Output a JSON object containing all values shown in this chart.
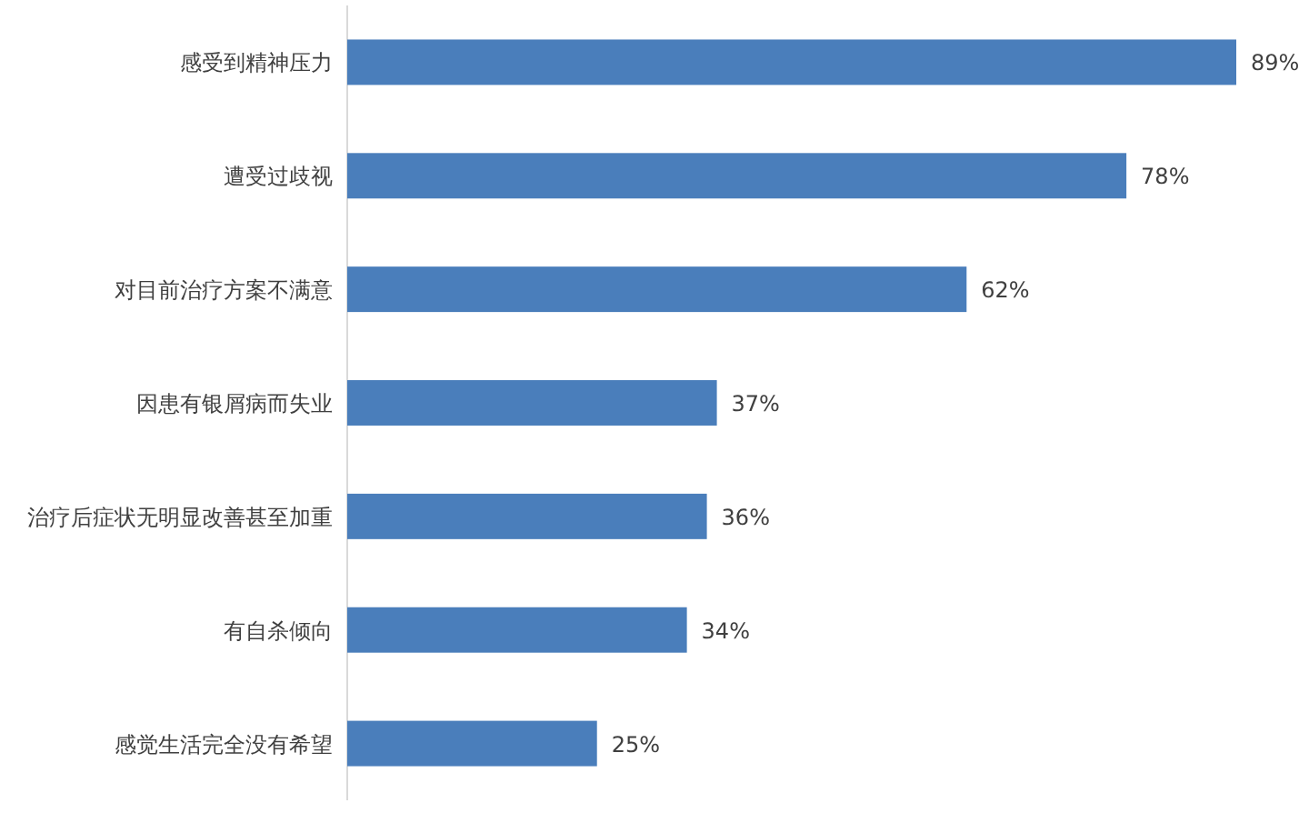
{
  "chart_data": {
    "type": "bar",
    "orientation": "horizontal",
    "tick_labels": "y",
    "categories": [
      "感受到精神压力",
      "遭受过歧视",
      "对目前治疗方案不满意",
      "因患有银屑病而失业",
      "治疗后症状无明显改善甚至加重",
      "有自杀倾向",
      "感觉生活完全没有希望"
    ],
    "values": [
      89,
      78,
      62,
      37,
      36,
      34,
      25
    ],
    "value_labels": [
      "89%",
      "78%",
      "62%",
      "37%",
      "36%",
      "34%",
      "25%"
    ],
    "color": "#4a7ebb"
  }
}
